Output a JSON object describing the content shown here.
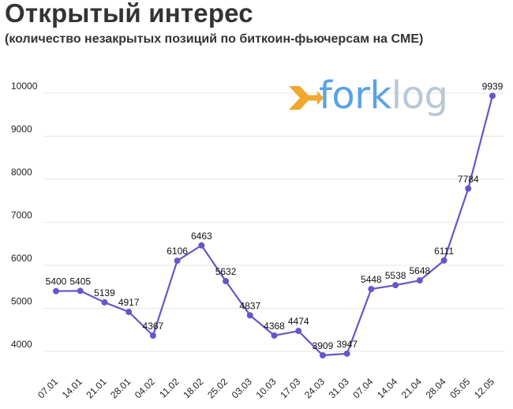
{
  "header": {
    "title": "Открытый интерес",
    "subtitle": "(количество незакрытых позиций по биткоин-фьючерсам на CME)"
  },
  "logo": {
    "part1": "fork",
    "part2": "log",
    "icon": "forklog-arrow-icon"
  },
  "colors": {
    "line": "#6a55c8",
    "marker": "#6a55c8",
    "grid": "#e6e6e6",
    "logo_blue": "#5aa2e6",
    "logo_orange": "#f0a830",
    "logo_gray": "#b8c8d8"
  },
  "chart_data": {
    "type": "line",
    "title": "Открытый интерес",
    "subtitle": "(количество незакрытых позиций по биткоин-фьючерсам на CME)",
    "categories": [
      "07.01",
      "14.01",
      "21.01",
      "28.01",
      "04.02",
      "11.02",
      "18.02",
      "25.02",
      "03.03",
      "10.03",
      "17.03",
      "24.03",
      "31.03",
      "07.04",
      "14.04",
      "21.04",
      "28.04",
      "05.05",
      "12.05"
    ],
    "values": [
      5400,
      5405,
      5139,
      4917,
      4367,
      6106,
      6463,
      5632,
      4837,
      4368,
      4474,
      3909,
      3947,
      5448,
      5538,
      5648,
      6111,
      7784,
      9939
    ],
    "yticks": [
      4000,
      5000,
      6000,
      7000,
      8000,
      9000,
      10000
    ],
    "ylim": [
      3600,
      10250
    ],
    "grid": true,
    "legend": "none",
    "xlabel": "",
    "ylabel": ""
  }
}
